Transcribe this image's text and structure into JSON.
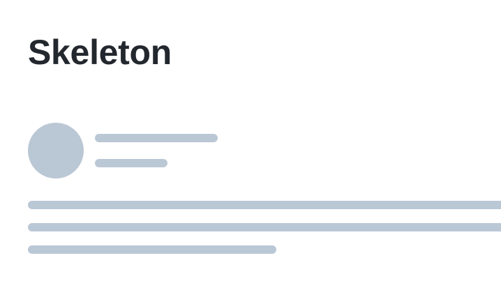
{
  "page": {
    "title": "Skeleton"
  },
  "colors": {
    "title_text": "#23272e",
    "skeleton_fill": "#bac7d5",
    "background": "#ffffff"
  },
  "skeleton": {
    "avatar_shape": "circle",
    "header_lines": 2,
    "body_lines": 3
  }
}
